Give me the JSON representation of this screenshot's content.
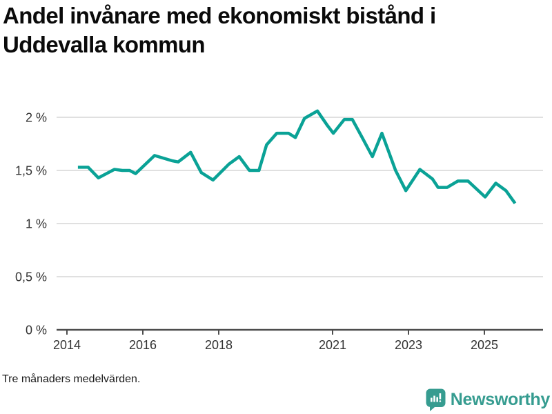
{
  "title": {
    "line1": "Andel invånare med ekonomiskt bistånd i",
    "line2": "Uddevalla kommun"
  },
  "footnote": "Tre månaders medelvärden.",
  "logo": {
    "text": "Newsworthy",
    "icon": "bar-chart-speech-bubble-icon"
  },
  "colors": {
    "line": "#0aa296",
    "logo": "#369c90",
    "grid": "#e0e0e0",
    "axis": "#4d4d4d",
    "tick_label": "#333333",
    "title": "#0a0a0a"
  },
  "chart_data": {
    "type": "line",
    "title": "Andel invånare med ekonomiskt bistånd i Uddevalla kommun",
    "subtitle": "Tre månaders medelvärden.",
    "unit": "%",
    "grid": true,
    "legend": false,
    "xlim": [
      2013.73,
      2026.55
    ],
    "ylim": [
      0,
      2.17
    ],
    "y_ticks": [
      {
        "value": 2,
        "label": "2 %"
      },
      {
        "value": 1.5,
        "label": "1,5 %"
      },
      {
        "value": 1,
        "label": "1 %"
      },
      {
        "value": 0.5,
        "label": "0,5 %"
      },
      {
        "value": 0,
        "label": "0 %"
      }
    ],
    "x_ticks": [
      {
        "value": 2014,
        "label": "2014"
      },
      {
        "value": 2016,
        "label": "2016"
      },
      {
        "value": 2018,
        "label": "2018"
      },
      {
        "value": 2021,
        "label": "2021"
      },
      {
        "value": 2023,
        "label": "2023"
      },
      {
        "value": 2025,
        "label": "2025"
      }
    ],
    "series": [
      {
        "name": "Uddevalla kommun",
        "points": [
          [
            2014.29,
            1.53
          ],
          [
            2014.56,
            1.53
          ],
          [
            2014.83,
            1.43
          ],
          [
            2015.25,
            1.51
          ],
          [
            2015.46,
            1.5
          ],
          [
            2015.65,
            1.5
          ],
          [
            2015.81,
            1.47
          ],
          [
            2016.13,
            1.58
          ],
          [
            2016.31,
            1.64
          ],
          [
            2016.78,
            1.59
          ],
          [
            2016.93,
            1.58
          ],
          [
            2017.26,
            1.67
          ],
          [
            2017.54,
            1.48
          ],
          [
            2017.85,
            1.41
          ],
          [
            2018.27,
            1.56
          ],
          [
            2018.54,
            1.63
          ],
          [
            2018.81,
            1.5
          ],
          [
            2019.06,
            1.5
          ],
          [
            2019.26,
            1.74
          ],
          [
            2019.53,
            1.85
          ],
          [
            2019.84,
            1.85
          ],
          [
            2020.02,
            1.81
          ],
          [
            2020.26,
            1.99
          ],
          [
            2020.6,
            2.06
          ],
          [
            2020.87,
            1.92
          ],
          [
            2021.02,
            1.85
          ],
          [
            2021.31,
            1.98
          ],
          [
            2021.52,
            1.98
          ],
          [
            2021.78,
            1.81
          ],
          [
            2022.05,
            1.63
          ],
          [
            2022.3,
            1.85
          ],
          [
            2022.66,
            1.5
          ],
          [
            2022.93,
            1.31
          ],
          [
            2023.3,
            1.51
          ],
          [
            2023.63,
            1.42
          ],
          [
            2023.78,
            1.34
          ],
          [
            2024.02,
            1.34
          ],
          [
            2024.3,
            1.4
          ],
          [
            2024.57,
            1.4
          ],
          [
            2025.02,
            1.25
          ],
          [
            2025.3,
            1.38
          ],
          [
            2025.57,
            1.31
          ],
          [
            2025.81,
            1.19
          ]
        ]
      }
    ]
  }
}
